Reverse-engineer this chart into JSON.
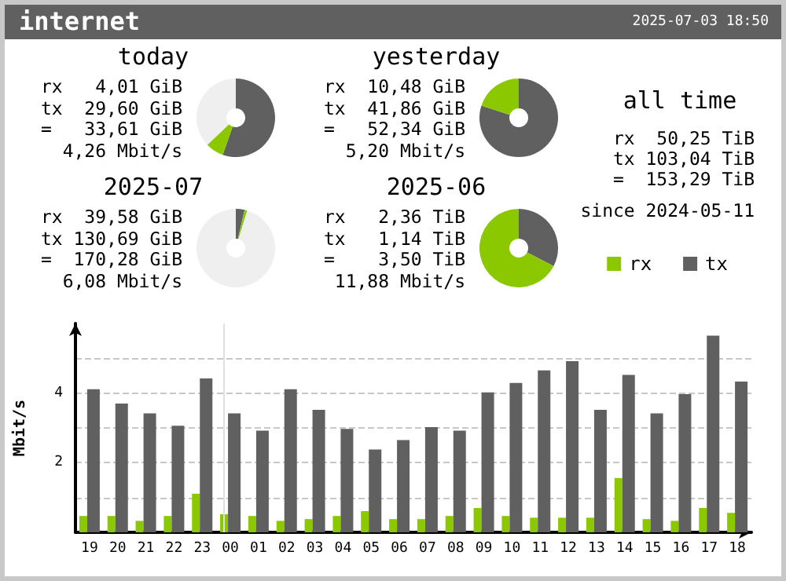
{
  "chart_data": [
    {
      "type": "other",
      "title": "internet",
      "subtitle": "2025-07-03 18:50"
    },
    {
      "type": "donut",
      "title": "today",
      "categories": [
        null,
        null,
        null
      ],
      "values": [
        7.5,
        55.4,
        37.1
      ],
      "colors": [
        "#8cc800",
        "#606060",
        "#efefef"
      ],
      "annotations": [
        "rx   4,01 GiB",
        "tx  29,60 GiB",
        "=   33,61 GiB",
        "4,26 Mbit/s"
      ]
    },
    {
      "type": "donut",
      "title": "yesterday",
      "categories": [
        null,
        null
      ],
      "values": [
        20,
        80
      ],
      "colors": [
        "#8cc800",
        "#606060"
      ],
      "annotations": [
        "rx  10,48 GiB",
        "tx  41,86 GiB",
        "=   52,34 GiB",
        "5,20 Mbit/s"
      ]
    },
    {
      "type": "other",
      "title": "all time",
      "annotations": [
        "rx  50,25 TiB",
        "tx 103,04 TiB",
        "=  153,29 TiB",
        "since 2024-05-11"
      ]
    },
    {
      "type": "donut",
      "title": "2025-07",
      "categories": [
        null,
        null,
        null
      ],
      "values": [
        1.1,
        3.6,
        95.3
      ],
      "colors": [
        "#8cc800",
        "#606060",
        "#efefef"
      ],
      "annotations": [
        "rx  39,58 GiB",
        "tx 130,69 GiB",
        "=  170,28 GiB",
        "6,08 Mbit/s"
      ]
    },
    {
      "type": "donut",
      "title": "2025-06",
      "categories": [
        null,
        null
      ],
      "values": [
        67.4,
        32.6
      ],
      "colors": [
        "#8cc800",
        "#606060"
      ],
      "annotations": [
        "rx   2,36 TiB",
        "tx   1,14 TiB",
        "=    3,50 TiB",
        "11,88 Mbit/s"
      ]
    },
    {
      "type": "bar",
      "ylabel": "Mbit/s",
      "categories": [
        "19",
        "20",
        "21",
        "22",
        "23",
        "00",
        "01",
        "02",
        "03",
        "04",
        "05",
        "06",
        "07",
        "08",
        "09",
        "10",
        "11",
        "12",
        "13",
        "14",
        "15",
        "16",
        "17",
        "18"
      ],
      "series": [
        {
          "name": "rx",
          "color": "#8cc800",
          "values": [
            0.47,
            0.47,
            0.33,
            0.47,
            1.11,
            0.52,
            0.47,
            0.33,
            0.38,
            0.47,
            0.61,
            0.38,
            0.38,
            0.47,
            0.7,
            0.47,
            0.42,
            0.42,
            0.42,
            1.56,
            0.38,
            0.33,
            0.7,
            0.56
          ]
        },
        {
          "name": "tx",
          "color": "#606060",
          "values": [
            4.11,
            3.7,
            3.42,
            3.06,
            4.42,
            3.42,
            2.92,
            4.11,
            3.52,
            2.97,
            2.38,
            2.65,
            3.02,
            2.92,
            4.02,
            4.29,
            4.65,
            4.92,
            3.52,
            4.52,
            3.42,
            3.97,
            5.65,
            4.33
          ]
        }
      ],
      "ylim": [
        0,
        6
      ],
      "yticks": [
        {
          "value": 1,
          "label": null
        },
        2,
        {
          "value": 3,
          "label": null
        },
        4,
        {
          "value": 5,
          "label": null
        }
      ],
      "grid": "y",
      "legend": "top right",
      "ref_lines": [
        {
          "axis": "x",
          "value": "00",
          "color": "#e0e0e0"
        }
      ]
    }
  ]
}
